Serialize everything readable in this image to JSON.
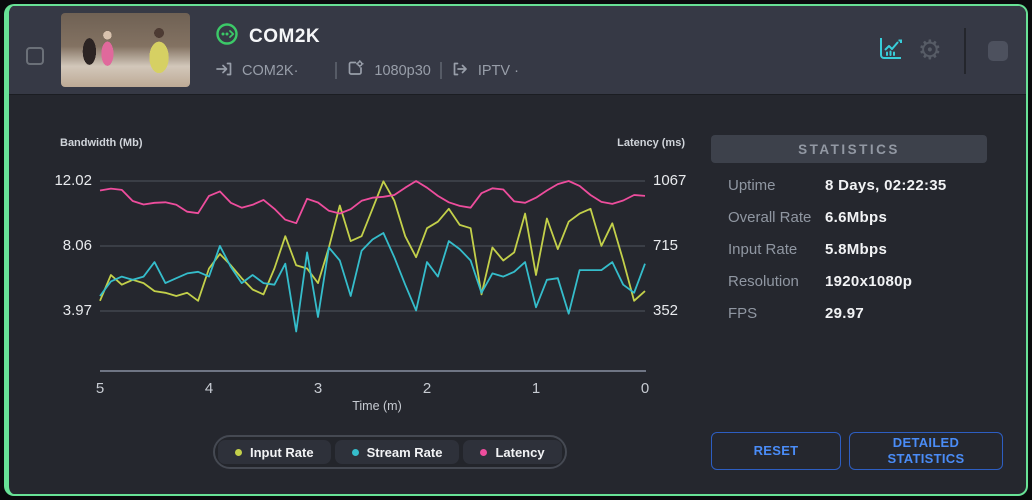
{
  "header": {
    "title": "COM2K",
    "source_label": "COM2K·",
    "encoder_label": "1080p30",
    "output_label": "IPTV ·",
    "icons": {
      "status": "ring-with-stream-dots",
      "source": "arrow-into-bracket",
      "encoder": "box-with-gear",
      "output": "bracket-arrow-out",
      "analytics": "line-chart",
      "settings": "gear",
      "record": "filled-square"
    }
  },
  "colors": {
    "card_border_green": "#68e296",
    "status_green": "#3cc968",
    "analytics_teal": "#38cdd9",
    "button_blue": "#4a8cf7",
    "series_input": "#c3d04a",
    "series_stream": "#35bdcb",
    "series_latency": "#ee4d9d"
  },
  "stats": {
    "title": "STATISTICS",
    "rows": [
      {
        "label": "Uptime",
        "value": "8 Days, 02:22:35"
      },
      {
        "label": "Overall Rate",
        "value": "6.6Mbps"
      },
      {
        "label": "Input Rate",
        "value": "5.8Mbps"
      },
      {
        "label": "Resolution",
        "value": "1920x1080p"
      },
      {
        "label": "FPS",
        "value": "29.97"
      }
    ],
    "reset_label": "RESET",
    "detailed_label": "DETAILED STATISTICS"
  },
  "chart_data": {
    "type": "line",
    "left_axis": {
      "label": "Bandwidth (Mb)",
      "ticks": [
        12.02,
        8.06,
        3.97
      ]
    },
    "right_axis": {
      "label": "Latency (ms)",
      "ticks": [
        1067,
        715,
        352
      ]
    },
    "x_axis": {
      "label": "Time (m)",
      "ticks": [
        5,
        4,
        3,
        2,
        1,
        0
      ],
      "range": [
        5,
        0
      ]
    },
    "grid": "horizontal-only",
    "legend_position": "bottom-center",
    "x": [
      5.0,
      4.9,
      4.8,
      4.7,
      4.6,
      4.5,
      4.4,
      4.3,
      4.2,
      4.1,
      4.0,
      3.9,
      3.8,
      3.7,
      3.6,
      3.5,
      3.4,
      3.3,
      3.2,
      3.1,
      3.0,
      2.9,
      2.8,
      2.7,
      2.6,
      2.5,
      2.4,
      2.3,
      2.2,
      2.1,
      2.0,
      1.9,
      1.8,
      1.7,
      1.6,
      1.5,
      1.4,
      1.3,
      1.2,
      1.1,
      1.0,
      0.9,
      0.8,
      0.7,
      0.6,
      0.5,
      0.4,
      0.3,
      0.2,
      0.1,
      0.0
    ],
    "series": [
      {
        "name": "Input Rate",
        "axis": "left",
        "color": "#c3d04a",
        "values": [
          4.6,
          6.2,
          5.6,
          5.9,
          5.7,
          5.2,
          5.1,
          4.9,
          5.1,
          4.6,
          6.6,
          7.5,
          6.8,
          6.0,
          5.3,
          5.0,
          6.6,
          8.6,
          6.8,
          6.6,
          5.7,
          7.9,
          10.5,
          8.3,
          8.6,
          10.3,
          12.0,
          10.8,
          8.6,
          7.3,
          9.1,
          9.5,
          10.3,
          9.3,
          9.1,
          5.0,
          7.9,
          7.1,
          7.6,
          10.0,
          6.2,
          9.7,
          7.8,
          9.5,
          10.0,
          10.3,
          8.0,
          9.4,
          7.1,
          4.6,
          5.2
        ]
      },
      {
        "name": "Stream Rate",
        "axis": "left",
        "color": "#35bdcb",
        "values": [
          4.9,
          5.8,
          6.1,
          5.9,
          6.1,
          7.0,
          5.7,
          6.0,
          6.3,
          6.4,
          6.1,
          8.0,
          6.7,
          5.7,
          6.2,
          5.7,
          5.6,
          6.9,
          2.7,
          7.6,
          3.6,
          7.9,
          7.1,
          4.9,
          7.7,
          8.4,
          8.8,
          7.3,
          5.6,
          4.0,
          7.0,
          6.1,
          8.3,
          7.8,
          7.1,
          5.1,
          6.3,
          6.1,
          6.4,
          7.0,
          4.2,
          5.9,
          6.0,
          3.8,
          6.5,
          6.5,
          6.5,
          7.0,
          5.6,
          5.1,
          6.9
        ]
      },
      {
        "name": "Latency",
        "axis": "right",
        "color": "#ee4d9d",
        "values": [
          1015,
          1025,
          1018,
          957,
          938,
          947,
          950,
          936,
          898,
          890,
          985,
          1010,
          947,
          920,
          936,
          963,
          914,
          854,
          835,
          969,
          949,
          903,
          888,
          912,
          958,
          975,
          980,
          990,
          1030,
          1067,
          1030,
          985,
          950,
          930,
          920,
          1000,
          1027,
          1020,
          955,
          947,
          975,
          1015,
          1050,
          1067,
          1040,
          990,
          952,
          941,
          960,
          990,
          985
        ]
      }
    ]
  }
}
